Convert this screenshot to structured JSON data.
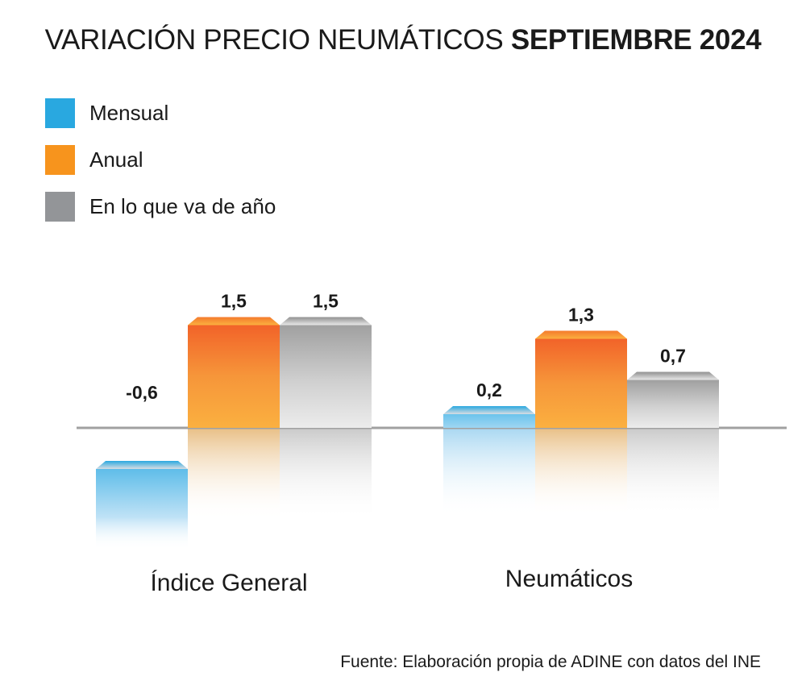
{
  "chart_data": {
    "type": "bar",
    "title_regular": "VARIACIÓN PRECIO NEUMÁTICOS ",
    "title_bold": "SEPTIEMBRE 2024",
    "categories": [
      "Índice General",
      "Neumáticos"
    ],
    "series": [
      {
        "name": "Mensual",
        "color": "#29a8e0",
        "values": [
          -0.6,
          0.2
        ],
        "labels": [
          "-0,6",
          "0,2"
        ]
      },
      {
        "name": "Anual",
        "color": "#f7941d",
        "values": [
          1.5,
          1.3
        ],
        "labels": [
          "1,5",
          "1,3"
        ]
      },
      {
        "name": "En lo que va de año",
        "color": "#939598",
        "values": [
          1.5,
          0.7
        ],
        "labels": [
          "1,5",
          "0,7"
        ]
      }
    ],
    "xlabel": "",
    "ylabel": "",
    "grid": false,
    "legend": "top-left",
    "source": "Fuente: Elaboración propia de ADINE con datos del INE"
  }
}
